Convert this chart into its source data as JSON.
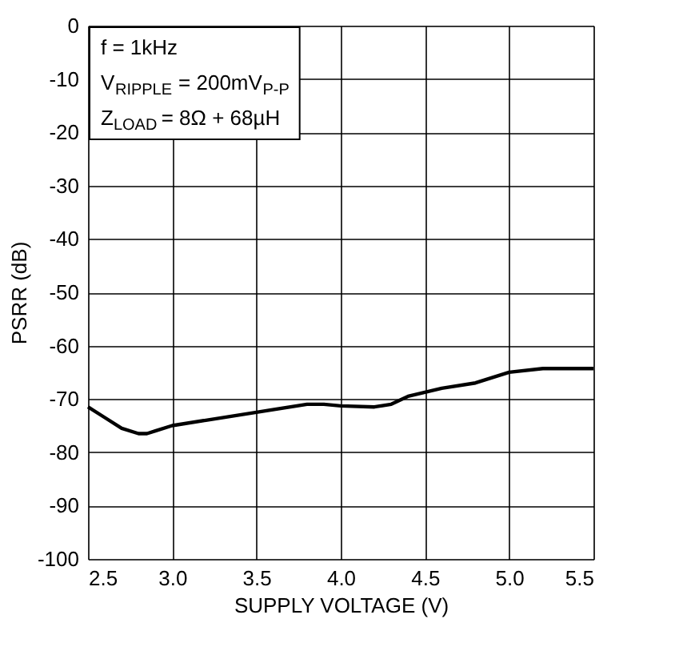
{
  "chart_data": {
    "type": "line",
    "xlabel": "SUPPLY VOLTAGE (V)",
    "ylabel": "PSRR (dB)",
    "x": [
      2.5,
      2.6,
      2.7,
      2.8,
      2.85,
      2.9,
      3.0,
      3.2,
      3.5,
      3.8,
      3.9,
      4.0,
      4.2,
      4.3,
      4.4,
      4.6,
      4.8,
      5.0,
      5.2,
      5.5
    ],
    "series": [
      {
        "color": "#000000",
        "values": [
          -71.5,
          -73.5,
          -75.5,
          -76.5,
          -76.5,
          -76,
          -75,
          -74,
          -72.5,
          -71,
          -71,
          -71.3,
          -71.5,
          -71,
          -69.5,
          -68,
          -67,
          -65,
          -64.3,
          -64.3
        ]
      }
    ],
    "xlim": [
      2.5,
      5.5
    ],
    "xticks": [
      {
        "value": 2.5,
        "label": "2.5"
      },
      {
        "value": 3,
        "label": "3.0"
      },
      {
        "value": 3.5,
        "label": "3.5"
      },
      {
        "value": 4,
        "label": "4.0"
      },
      {
        "value": 4.5,
        "label": "4.5"
      },
      {
        "value": 5,
        "label": "5.0"
      },
      {
        "value": 5.5,
        "label": "5.5"
      }
    ],
    "ylim": [
      -100,
      0
    ],
    "yticks": [
      -100,
      -90,
      -80,
      -70,
      -60,
      -50,
      -40,
      -30,
      -20,
      -10,
      0
    ],
    "grid": true,
    "marker": "none",
    "line_style": "solid",
    "annotations": [
      "f = 1kHz",
      "V$_{RIPPLE}$ = 200mV$_{P-P}$",
      "Z$_{LOAD}$ = 8Ω + 68µH"
    ]
  }
}
